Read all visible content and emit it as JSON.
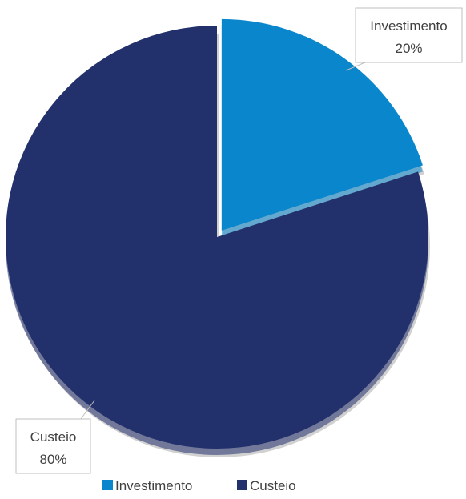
{
  "chart_data": {
    "type": "pie",
    "title": "",
    "legend_position": "bottom",
    "slices": [
      {
        "label": "Investimento",
        "value": 20,
        "percent_label": "20%",
        "color": "#0a86cc"
      },
      {
        "label": "Custeio",
        "value": 80,
        "percent_label": "80%",
        "color": "#22306b"
      }
    ]
  }
}
